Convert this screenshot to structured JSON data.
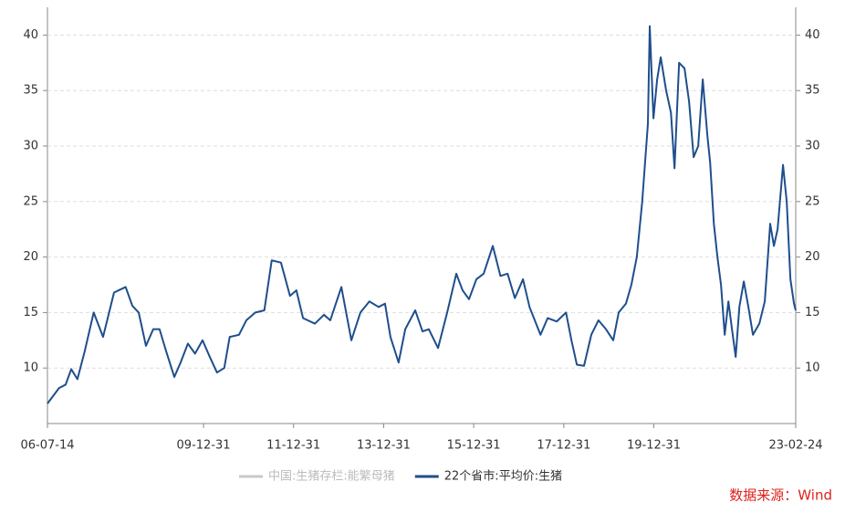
{
  "chart_data": {
    "type": "line",
    "x": [
      "06-07-14",
      "06-10-16",
      "06-12-08",
      "07-01-23",
      "07-03-14",
      "07-05-12",
      "07-07-24",
      "07-10-08",
      "08-01-05",
      "08-04-08",
      "08-06-02",
      "08-07-23",
      "08-09-20",
      "08-11-18",
      "09-01-08",
      "09-03-03",
      "09-05-08",
      "09-06-28",
      "09-08-26",
      "09-10-23",
      "09-12-23",
      "10-02-20",
      "10-04-19",
      "10-06-17",
      "10-07-31",
      "10-10-15",
      "10-12-13",
      "11-02-24",
      "11-05-08",
      "11-07-07",
      "11-09-20",
      "11-12-02",
      "12-01-23",
      "12-03-17",
      "12-06-21",
      "12-09-03",
      "12-10-24",
      "13-01-22",
      "13-04-13",
      "13-06-25",
      "13-09-06",
      "13-11-20",
      "14-01-11",
      "14-02-24",
      "14-05-01",
      "14-06-24",
      "14-09-13",
      "14-11-11",
      "15-01-01",
      "15-03-17",
      "15-05-30",
      "15-08-12",
      "15-10-02",
      "15-11-23",
      "16-01-22",
      "16-03-21",
      "16-06-03",
      "16-08-04",
      "16-10-01",
      "16-11-29",
      "17-02-03",
      "17-03-28",
      "17-06-25",
      "17-08-22",
      "17-11-04",
      "18-01-18",
      "18-03-03",
      "18-04-16",
      "18-06-13",
      "18-08-11",
      "18-10-08",
      "18-12-08",
      "19-02-05",
      "19-03-21",
      "19-05-19",
      "19-07-02",
      "19-08-15",
      "19-09-28",
      "19-11-13",
      "19-11-28",
      "19-12-28",
      "20-01-27",
      "20-02-25",
      "20-04-09",
      "20-05-18",
      "20-06-16",
      "20-07-23",
      "20-09-05",
      "20-10-12",
      "20-11-18",
      "20-12-25",
      "21-01-31",
      "21-03-09",
      "21-04-01",
      "21-05-01",
      "21-05-30",
      "21-06-28",
      "21-07-28",
      "21-08-27",
      "21-09-25",
      "21-10-25",
      "21-11-24",
      "21-12-30",
      "22-02-05",
      "22-03-14",
      "22-05-05",
      "22-06-18",
      "22-08-01",
      "22-08-31",
      "22-09-30",
      "22-11-13",
      "22-12-13",
      "23-01-12",
      "23-02-10",
      "23-02-24"
    ],
    "series": [
      {
        "name": "中国:生猪存栏:能繁母猪",
        "color": "#c8c8c8",
        "hidden": true
      },
      {
        "name": "22个省市:平均价:生猪",
        "color": "#1f4e8c",
        "values": [
          6.8,
          8.2,
          8.5,
          9.9,
          9,
          11.5,
          15,
          12.8,
          16.8,
          17.3,
          15.6,
          15,
          12,
          13.5,
          13.5,
          11.5,
          9.2,
          10.5,
          12.2,
          11.3,
          12.5,
          11,
          9.6,
          10,
          12.8,
          13,
          14.3,
          15,
          15.2,
          19.7,
          19.5,
          16.5,
          17,
          14.5,
          14,
          14.8,
          14.3,
          17.3,
          12.5,
          15,
          16,
          15.5,
          15.8,
          12.8,
          10.5,
          13.5,
          15.2,
          13.3,
          13.5,
          11.8,
          15,
          18.5,
          17,
          16.2,
          18,
          18.5,
          21,
          18.3,
          18.5,
          16.3,
          18,
          15.5,
          13,
          14.5,
          14.2,
          15,
          12.5,
          10.3,
          10.2,
          13,
          14.3,
          13.5,
          12.5,
          15,
          15.8,
          17.5,
          20,
          25,
          32,
          40.8,
          32.5,
          36,
          38,
          35,
          33,
          28,
          37.5,
          37,
          34,
          29,
          30,
          36,
          31,
          28.5,
          23,
          20,
          17.5,
          13,
          16,
          13.5,
          11,
          15.5,
          17.8,
          15.5,
          13,
          14,
          16,
          23,
          21,
          22.5,
          28.3,
          25,
          18,
          15.8,
          15.2
        ]
      }
    ],
    "xlim": [
      "06-07-14",
      "23-02-24"
    ],
    "xticks": [
      "06-07-14",
      "09-12-31",
      "11-12-31",
      "13-12-31",
      "15-12-31",
      "17-12-31",
      "19-12-31",
      "23-02-24"
    ],
    "ylim": [
      5,
      42.5
    ],
    "yticks": [
      10,
      15,
      20,
      25,
      30,
      35,
      40
    ],
    "grid": true,
    "source": "数据来源：Wind"
  }
}
